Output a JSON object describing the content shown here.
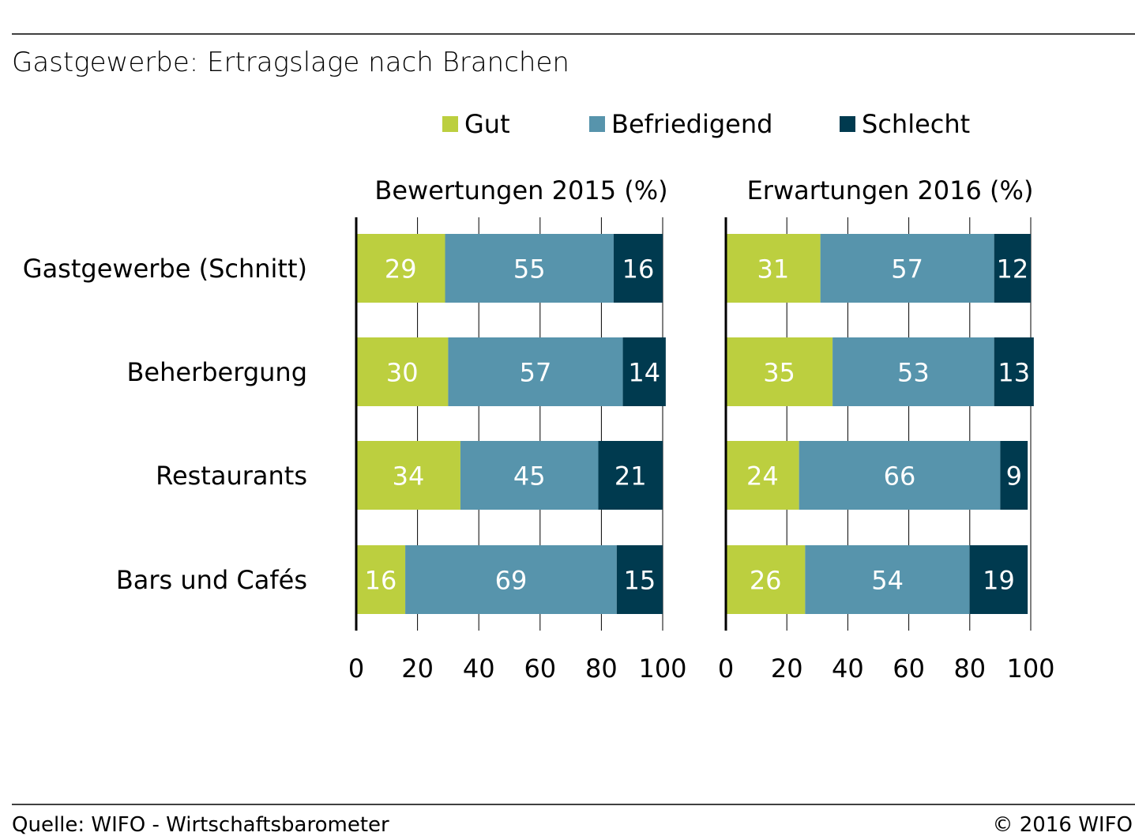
{
  "title": "Gastgewerbe: Ertragslage nach Branchen",
  "source": "Quelle: WIFO - Wirtschaftsbarometer",
  "copyright": "© 2016 WIFO",
  "colors": {
    "gut": "#bccf3f",
    "befriedigend": "#5794ac",
    "schlecht": "#003a4f",
    "grid": "#000000"
  },
  "chart_data": {
    "type": "bar",
    "orientation": "horizontal",
    "stacked": true,
    "legend_position": "top",
    "categories": [
      "Gastgewerbe (Schnitt)",
      "Beherbergung",
      "Restaurants",
      "Bars und Cafés"
    ],
    "legend": [
      "Gut",
      "Befriedigend",
      "Schlecht"
    ],
    "panels": [
      {
        "title": "Bewertungen 2015 (%)",
        "xlim": [
          0,
          100
        ],
        "ticks": [
          0,
          20,
          40,
          60,
          80,
          100
        ],
        "series": [
          {
            "name": "Gut",
            "values": [
              29,
              30,
              34,
              16
            ]
          },
          {
            "name": "Befriedigend",
            "values": [
              55,
              57,
              45,
              69
            ]
          },
          {
            "name": "Schlecht",
            "values": [
              16,
              14,
              21,
              15
            ]
          }
        ]
      },
      {
        "title": "Erwartungen 2016 (%)",
        "xlim": [
          0,
          100
        ],
        "ticks": [
          0,
          20,
          40,
          60,
          80,
          100
        ],
        "series": [
          {
            "name": "Gut",
            "values": [
              31,
              35,
              24,
              26
            ]
          },
          {
            "name": "Befriedigend",
            "values": [
              57,
              53,
              66,
              54
            ]
          },
          {
            "name": "Schlecht",
            "values": [
              12,
              13,
              9,
              19
            ]
          }
        ]
      }
    ]
  }
}
